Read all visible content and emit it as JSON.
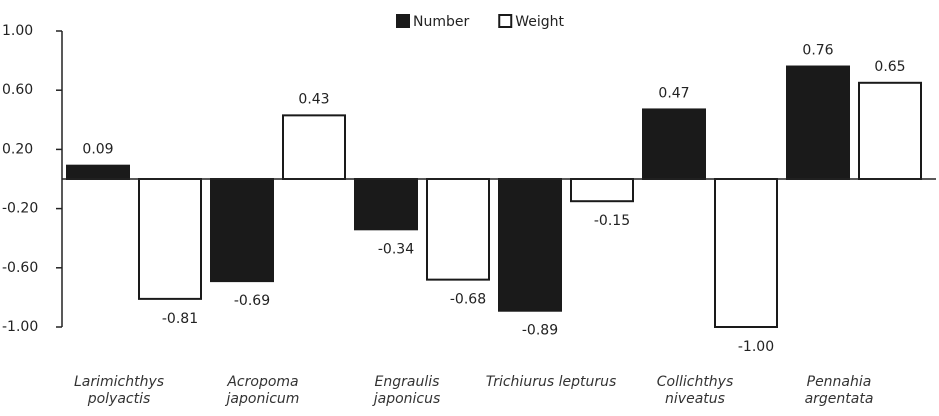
{
  "chart_data": {
    "type": "bar",
    "categories": [
      "Larimichthys\npolyactis",
      "Acropoma\njaponicum",
      "Engraulis\njaponicus",
      "Trichiurus lepturus",
      "Collichthys\nniveatus",
      "Pennahia\nargentata"
    ],
    "series": [
      {
        "name": "Number",
        "color": "#1a1a1a",
        "values": [
          0.09,
          -0.69,
          -0.34,
          -0.89,
          0.47,
          0.76
        ],
        "value_labels": [
          "0.09",
          "-0.69",
          "-0.34",
          "-0.89",
          "0.47",
          "0.76"
        ]
      },
      {
        "name": "Weight",
        "color": "#ffffff",
        "values": [
          -0.81,
          0.43,
          -0.68,
          -0.15,
          -1.0,
          0.65
        ],
        "value_labels": [
          "-0.81",
          "0.43",
          "-0.68",
          "-0.15",
          "-1.00",
          "0.65"
        ]
      }
    ],
    "ylim": [
      -1,
      1
    ],
    "yticks": [
      {
        "value": 1,
        "label": "1.00"
      },
      {
        "value": 0.6,
        "label": "0.60"
      },
      {
        "value": 0.2,
        "label": "0.20"
      },
      {
        "value": -0.2,
        "label": "-0.20"
      },
      {
        "value": -0.6,
        "label": "-0.60"
      },
      {
        "value": -1,
        "label": "-1.00"
      }
    ],
    "legend": "top"
  }
}
